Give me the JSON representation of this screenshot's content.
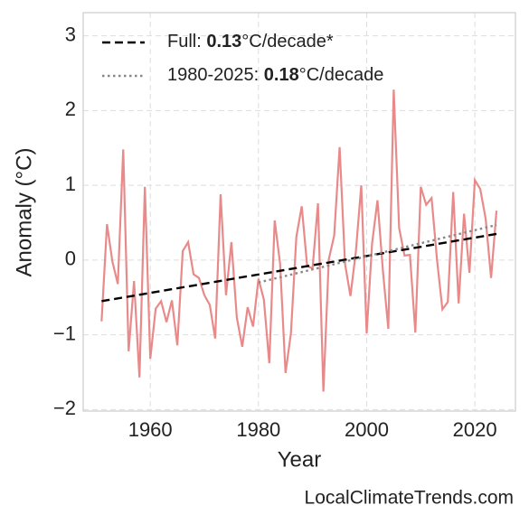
{
  "chart_data": {
    "type": "line",
    "xlabel": "Year",
    "ylabel": "Anomaly (°C)",
    "source": "LocalClimateTrends.com",
    "xlim": [
      1947.6,
      2027.5
    ],
    "ylim": [
      -2.02,
      3.31
    ],
    "xticks": [
      1960,
      1980,
      2000,
      2020
    ],
    "yticks": [
      {
        "value": -2,
        "label": "−2"
      },
      {
        "value": -1,
        "label": "−1"
      },
      0,
      1,
      2,
      3
    ],
    "grid": true,
    "legend": "upper left",
    "series": [
      {
        "color": "#e88a8a",
        "linestyle": "solid",
        "x": [
          1951,
          1952,
          1953,
          1954,
          1955,
          1956,
          1957,
          1958,
          1959,
          1960,
          1961,
          1962,
          1963,
          1964,
          1965,
          1966,
          1967,
          1968,
          1969,
          1970,
          1971,
          1972,
          1973,
          1974,
          1975,
          1976,
          1977,
          1978,
          1979,
          1980,
          1981,
          1982,
          1983,
          1984,
          1985,
          1986,
          1987,
          1988,
          1989,
          1990,
          1991,
          1992,
          1993,
          1994,
          1995,
          1996,
          1997,
          1998,
          1999,
          2000,
          2001,
          2002,
          2003,
          2004,
          2005,
          2006,
          2007,
          2008,
          2009,
          2010,
          2011,
          2012,
          2013,
          2014,
          2015,
          2016,
          2017,
          2018,
          2019,
          2020,
          2021,
          2022,
          2023,
          2024
        ],
        "values": [
          -0.82,
          0.48,
          -0.02,
          -0.32,
          1.48,
          -1.22,
          -0.28,
          -1.57,
          0.98,
          -1.32,
          -0.65,
          -0.55,
          -0.83,
          -0.54,
          -1.14,
          0.12,
          0.24,
          -0.19,
          -0.24,
          -0.47,
          -0.6,
          -1.05,
          0.88,
          -0.47,
          0.24,
          -0.77,
          -1.16,
          -0.63,
          -0.89,
          -0.25,
          -0.53,
          -1.38,
          0.53,
          -0.05,
          -1.51,
          -0.98,
          0.31,
          0.72,
          -0.08,
          -0.11,
          0.76,
          -1.76,
          0.01,
          0.33,
          1.51,
          -0.05,
          -0.48,
          0.11,
          1.0,
          -0.98,
          0.22,
          0.8,
          -0.14,
          -0.92,
          2.28,
          0.43,
          0.06,
          0.07,
          -0.97,
          0.98,
          0.74,
          0.83,
          0.01,
          -0.66,
          -0.56,
          0.91,
          -0.58,
          0.62,
          -0.17,
          1.07,
          0.95,
          0.55,
          -0.24,
          0.66
        ]
      },
      {
        "name": {
          "prefix": "Full: ",
          "bold": "0.13",
          "suffix": "°C/decade*"
        },
        "color": "#000000",
        "linestyle": "dashed",
        "x": [
          1951,
          2024
        ],
        "values": [
          -0.55,
          0.35
        ]
      },
      {
        "name": {
          "prefix": "1980-2025: ",
          "bold": "0.18",
          "suffix": "°C/decade"
        },
        "color": "#888888",
        "linestyle": "dotted",
        "x": [
          1980,
          2024
        ],
        "values": [
          -0.3,
          0.47
        ]
      }
    ]
  }
}
